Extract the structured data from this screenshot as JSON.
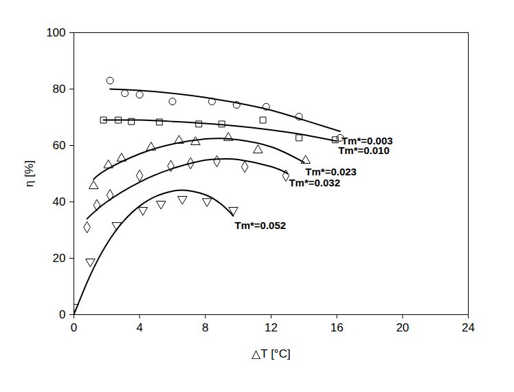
{
  "chart_data": {
    "type": "scatter",
    "x_label": "△T [°C]",
    "y_label": "η [%]",
    "xlim": [
      0,
      24
    ],
    "xticks": [
      0,
      4,
      8,
      12,
      16,
      20,
      24
    ],
    "ylim": [
      0,
      100
    ],
    "yticks": [
      0,
      20,
      40,
      60,
      80,
      100
    ],
    "grid": false,
    "series": [
      {
        "name": "Tm*=0.003",
        "color": "#000000",
        "marker": "circle",
        "x": [
          2.2,
          3.1,
          4.0,
          6.0,
          8.4,
          9.9,
          11.7,
          13.7,
          16.2
        ],
        "values": [
          83,
          78.5,
          78,
          75.6,
          75.6,
          74.4,
          73.7,
          70.2,
          62.7
        ],
        "fit": {
          "x": [
            2.2,
            4,
            6,
            8,
            10,
            12,
            14,
            16.2
          ],
          "values": [
            80,
            79.5,
            78.5,
            77,
            75,
            72.5,
            69,
            65
          ]
        }
      },
      {
        "name": "Tm*=0.010",
        "color": "#000000",
        "marker": "square",
        "x": [
          1.8,
          2.7,
          3.5,
          5.2,
          7.6,
          9.0,
          11.5,
          13.7,
          15.9
        ],
        "values": [
          69,
          69,
          68.5,
          68.3,
          67.6,
          67.6,
          69,
          62.7,
          62
        ],
        "fit": {
          "x": [
            1.8,
            4,
            6,
            8,
            10,
            12,
            14,
            16
          ],
          "values": [
            69,
            69,
            68.5,
            67.8,
            66.8,
            65.5,
            63.8,
            61.5
          ]
        }
      },
      {
        "name": "Tm*=0.023",
        "color": "#000000",
        "marker": "triangle",
        "x": [
          1.2,
          2.1,
          2.9,
          4.7,
          6.4,
          7.4,
          9.4,
          11.2,
          14.1
        ],
        "values": [
          45.6,
          53,
          55.4,
          59.3,
          61.7,
          61.2,
          62.7,
          58.3,
          54.6
        ],
        "fit": {
          "x": [
            1.2,
            2,
            4,
            6,
            8,
            9,
            10,
            12,
            14
          ],
          "values": [
            48,
            51.5,
            57,
            60.5,
            62.3,
            62.5,
            62,
            59.5,
            54
          ]
        }
      },
      {
        "name": "Tm*=0.032",
        "color": "#000000",
        "marker": "diamond",
        "x": [
          0.8,
          1.4,
          2.2,
          4.0,
          5.9,
          7.1,
          8.7,
          10.4,
          12.9
        ],
        "values": [
          31,
          38.8,
          42.4,
          49.3,
          52.7,
          53.7,
          54.4,
          52.4,
          49.3
        ],
        "fit": {
          "x": [
            0.8,
            2,
            4,
            6,
            8,
            9,
            10,
            12,
            13
          ],
          "values": [
            34,
            40,
            47,
            51.8,
            54.8,
            55.2,
            55,
            52.5,
            50
          ]
        }
      },
      {
        "name": "Tm*=0.052",
        "color": "#000000",
        "marker": "inverted_triangle",
        "x": [
          0,
          1.0,
          2.6,
          4.2,
          5.3,
          6.6,
          8.1,
          9.7
        ],
        "values": [
          2.7,
          18.8,
          31.7,
          37.1,
          39.3,
          41,
          40.2,
          37.1
        ],
        "fit": {
          "x": [
            0,
            1,
            2,
            3,
            4,
            5,
            6,
            6.8,
            8,
            9,
            9.7
          ],
          "values": [
            0,
            14,
            25,
            33,
            38.5,
            42,
            43.8,
            44.1,
            42.5,
            39,
            35
          ]
        }
      }
    ]
  }
}
